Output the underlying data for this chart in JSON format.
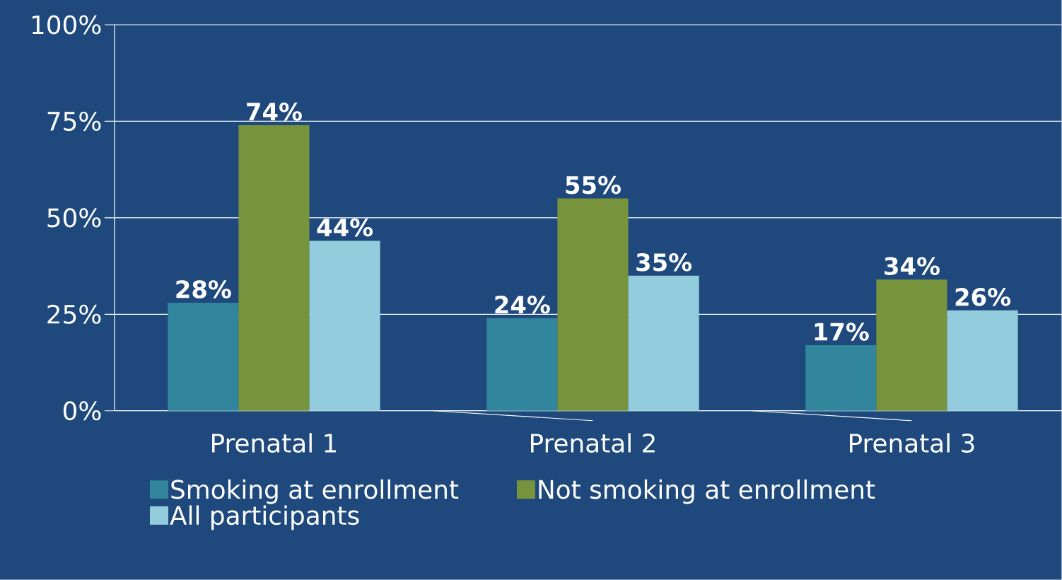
{
  "chart_data": {
    "type": "bar",
    "categories": [
      "Prenatal 1",
      "Prenatal 2",
      "Prenatal 3"
    ],
    "series": [
      {
        "name": "Smoking at enrollment",
        "color": "#31859c",
        "values": [
          28,
          24,
          17
        ],
        "value_labels": [
          "28%",
          "24%",
          "17%"
        ]
      },
      {
        "name": "Not smoking at enrollment",
        "color": "#77933c",
        "values": [
          74,
          55,
          34
        ],
        "value_labels": [
          "74%",
          "55%",
          "34%"
        ]
      },
      {
        "name": "All participants",
        "color": "#93cddd",
        "values": [
          44,
          35,
          26
        ],
        "value_labels": [
          "44%",
          "35%",
          "26%"
        ]
      }
    ],
    "ylim": [
      0,
      100
    ],
    "yticks": [
      {
        "value": 0,
        "label": "0%"
      },
      {
        "value": 25,
        "label": "25%"
      },
      {
        "value": 50,
        "label": "50%"
      },
      {
        "value": 75,
        "label": "75%"
      },
      {
        "value": 100,
        "label": "100%"
      }
    ],
    "grid": "y",
    "legend": "bottom"
  }
}
